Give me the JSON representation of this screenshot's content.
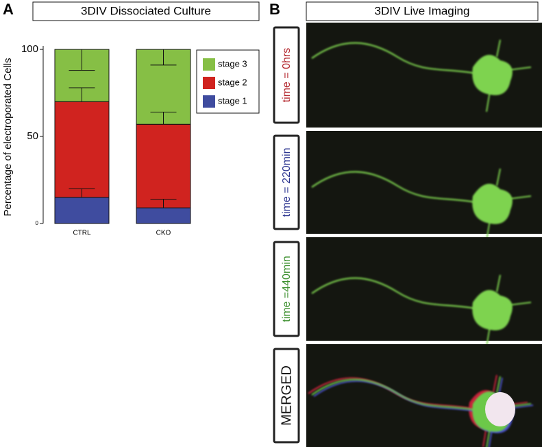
{
  "panel_a": {
    "label": "A",
    "title": "3DIV Dissociated Culture"
  },
  "chart_data": {
    "type": "stacked_bar",
    "y_label": "Percentage of electroporated Cells",
    "categories": [
      "CTRL",
      "CKO"
    ],
    "series": [
      {
        "name": "stage 1",
        "color": "#3f4c9f",
        "values": [
          15,
          9
        ],
        "errors": [
          5,
          5
        ]
      },
      {
        "name": "stage 2",
        "color": "#d0231f",
        "values": [
          55,
          48
        ],
        "errors": [
          8,
          7
        ]
      },
      {
        "name": "stage 3",
        "color": "#86bf45",
        "values": [
          30,
          43
        ],
        "errors": [
          12,
          9
        ]
      }
    ],
    "ylim": [
      0,
      102
    ],
    "yticks": [
      0,
      50,
      100
    ]
  },
  "panel_b": {
    "label": "B",
    "title": "3DIV Live Imaging",
    "rows": [
      {
        "label": "time = 0hrs",
        "color": "#b3262c"
      },
      {
        "label": "time = 220min",
        "color": "#2c3590"
      },
      {
        "label": "time =440min",
        "color": "#3c8f2e"
      },
      {
        "label": "MERGED",
        "color": "#111111"
      }
    ]
  }
}
